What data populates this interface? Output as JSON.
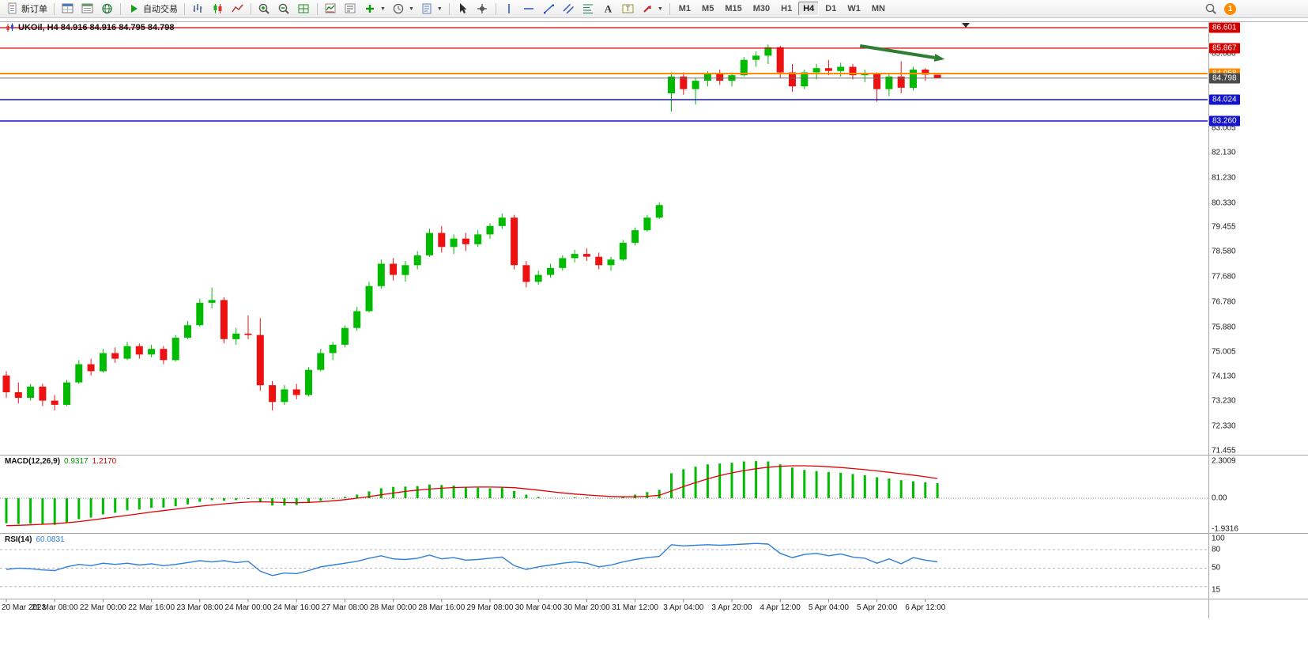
{
  "toolbar": {
    "new_order_label": "新订单",
    "autotrading_label": "自动交易",
    "timeframes": [
      "M1",
      "M5",
      "M15",
      "M30",
      "H1",
      "H4",
      "D1",
      "W1",
      "MN"
    ],
    "active_timeframe": "H4",
    "notification_count": "1",
    "groups": [
      {
        "items": [
          {
            "name": "new-order-button",
            "icon": "page",
            "label_key": "new_order_label"
          }
        ]
      },
      {
        "items": [
          {
            "name": "market-watch-icon",
            "icon": "win"
          },
          {
            "name": "data-window-icon",
            "icon": "datawin"
          },
          {
            "name": "navigator-icon",
            "icon": "globe"
          }
        ]
      },
      {
        "items": [
          {
            "name": "autotrading-button",
            "icon": "play",
            "label_key": "autotrading_label"
          }
        ]
      },
      {
        "items": [
          {
            "name": "bar-chart-icon",
            "icon": "bars"
          },
          {
            "name": "candlestick-chart-icon",
            "icon": "candles"
          },
          {
            "name": "line-chart-icon",
            "icon": "linec"
          }
        ]
      },
      {
        "items": [
          {
            "name": "zoom-in-icon",
            "icon": "zoomin"
          },
          {
            "name": "zoom-out-icon",
            "icon": "zoomout"
          },
          {
            "name": "tile-windows-icon",
            "icon": "grid"
          }
        ]
      },
      {
        "items": [
          {
            "name": "indicators-icon",
            "icon": "indchart"
          },
          {
            "name": "indicator-list-icon",
            "icon": "indlist"
          },
          {
            "name": "add-indicator-dropdown",
            "icon": "plus",
            "dropdown": true
          },
          {
            "name": "periods-dropdown",
            "icon": "clock",
            "dropdown": true
          },
          {
            "name": "templates-dropdown",
            "icon": "template",
            "dropdown": true
          }
        ]
      },
      {
        "items": [
          {
            "name": "cursor-icon",
            "icon": "cursor"
          },
          {
            "name": "crosshair-icon",
            "icon": "cross"
          }
        ]
      },
      {
        "items": [
          {
            "name": "vertical-line-icon",
            "icon": "vline"
          },
          {
            "name": "horizontal-line-icon",
            "icon": "hline"
          },
          {
            "name": "trendline-icon",
            "icon": "tline"
          },
          {
            "name": "equidistant-channel-icon",
            "icon": "channel"
          },
          {
            "name": "fibonacci-icon",
            "icon": "fibo"
          },
          {
            "name": "text-icon",
            "icon": "textA"
          },
          {
            "name": "text-label-icon",
            "icon": "textT"
          },
          {
            "name": "arrows-dropdown",
            "icon": "arrowsym",
            "dropdown": true
          }
        ]
      }
    ]
  },
  "chart": {
    "title": "UKOil, H4 84.916 84.916 84.795 84.798",
    "symbol": "UKOil",
    "period": "H4",
    "open": "84.916",
    "high": "84.916",
    "low": "84.795",
    "close": "84.798"
  },
  "indicators": {
    "macd": {
      "name": "MACD(12,26,9)",
      "value": "0.9317",
      "signal": "1.2170"
    },
    "rsi": {
      "name": "RSI(14)",
      "value": "60.0831"
    }
  },
  "chart_data": [
    {
      "type": "candlestick",
      "title": "UKOil H4",
      "ylim": [
        71.0,
        86.8
      ],
      "colors": {
        "up": "#00BB00",
        "down": "#EE1111"
      },
      "price_ticks": [
        85.68,
        83.005,
        82.13,
        81.23,
        80.33,
        79.455,
        78.58,
        77.68,
        76.78,
        75.88,
        75.005,
        74.13,
        73.23,
        72.33,
        71.455
      ],
      "level_lines": [
        {
          "price": 86.601,
          "label": "86.601",
          "line_color": "#D40000",
          "label_bg": "#D40000",
          "line_width": 1.2
        },
        {
          "price": 85.867,
          "label": "85.867",
          "line_color": "#D40000",
          "label_bg": "#D40000",
          "line_width": 1.2
        },
        {
          "price": 84.958,
          "label": "84.958",
          "line_color": "#FF8A00",
          "label_bg": "#FF8A00",
          "line_width": 2
        },
        {
          "price": 84.798,
          "label": "84.798",
          "line_color": "#6a6a6a",
          "label_bg": "#4a4a4a",
          "line_width": 1
        },
        {
          "price": 84.024,
          "label": "84.024",
          "line_color": "#1414CC",
          "label_bg": "#1414CC",
          "line_width": 1.4
        },
        {
          "price": 83.26,
          "label": "83.260",
          "line_color": "#1414CC",
          "label_bg": "#1414CC",
          "line_width": 1.4
        }
      ],
      "annotation_arrow": {
        "i1": 70.6,
        "p1": 85.95,
        "i2": 77.6,
        "p2": 85.47,
        "color": "#2E7D32"
      },
      "time_labels": [
        {
          "i": 0,
          "t": "20 Mar 2023"
        },
        {
          "i": 4,
          "t": "21 Mar 08:00"
        },
        {
          "i": 8,
          "t": "22 Mar 00:00"
        },
        {
          "i": 12,
          "t": "22 Mar 16:00"
        },
        {
          "i": 16,
          "t": "23 Mar 08:00"
        },
        {
          "i": 20,
          "t": "24 Mar 00:00"
        },
        {
          "i": 24,
          "t": "24 Mar 16:00"
        },
        {
          "i": 28,
          "t": "27 Mar 08:00"
        },
        {
          "i": 32,
          "t": "28 Mar 00:00"
        },
        {
          "i": 36,
          "t": "28 Mar 16:00"
        },
        {
          "i": 40,
          "t": "29 Mar 08:00"
        },
        {
          "i": 44,
          "t": "30 Mar 04:00"
        },
        {
          "i": 48,
          "t": "30 Mar 20:00"
        },
        {
          "i": 52,
          "t": "31 Mar 12:00"
        },
        {
          "i": 56,
          "t": "3 Apr 04:00"
        },
        {
          "i": 60,
          "t": "3 Apr 20:00"
        },
        {
          "i": 64,
          "t": "4 Apr 12:00"
        },
        {
          "i": 68,
          "t": "5 Apr 04:00"
        },
        {
          "i": 72,
          "t": "5 Apr 20:00"
        },
        {
          "i": 76,
          "t": "6 Apr 12:00"
        }
      ],
      "candles": [
        [
          74.15,
          74.3,
          73.35,
          73.55
        ],
        [
          73.55,
          73.9,
          73.15,
          73.35
        ],
        [
          73.35,
          73.85,
          73.25,
          73.75
        ],
        [
          73.75,
          73.85,
          73.05,
          73.25
        ],
        [
          73.25,
          73.45,
          72.9,
          73.1
        ],
        [
          73.1,
          74.0,
          73.05,
          73.9
        ],
        [
          73.9,
          74.7,
          73.85,
          74.55
        ],
        [
          74.55,
          74.75,
          74.15,
          74.3
        ],
        [
          74.3,
          75.1,
          74.25,
          74.95
        ],
        [
          74.95,
          75.15,
          74.6,
          74.75
        ],
        [
          74.75,
          75.35,
          74.7,
          75.2
        ],
        [
          75.2,
          75.3,
          74.75,
          74.9
        ],
        [
          74.9,
          75.25,
          74.8,
          75.1
        ],
        [
          75.1,
          75.2,
          74.55,
          74.7
        ],
        [
          74.7,
          75.6,
          74.65,
          75.5
        ],
        [
          75.5,
          76.1,
          75.45,
          75.95
        ],
        [
          75.95,
          76.9,
          75.9,
          76.75
        ],
        [
          76.75,
          77.3,
          76.55,
          76.85
        ],
        [
          76.85,
          76.95,
          75.3,
          75.45
        ],
        [
          75.45,
          75.85,
          75.25,
          75.65
        ],
        [
          75.65,
          76.3,
          75.45,
          75.6
        ],
        [
          75.6,
          76.2,
          73.6,
          73.8
        ],
        [
          73.8,
          73.95,
          72.9,
          73.2
        ],
        [
          73.2,
          73.8,
          73.1,
          73.65
        ],
        [
          73.65,
          73.85,
          73.3,
          73.45
        ],
        [
          73.45,
          74.45,
          73.4,
          74.35
        ],
        [
          74.35,
          75.1,
          74.3,
          74.95
        ],
        [
          74.95,
          75.35,
          74.7,
          75.25
        ],
        [
          75.25,
          75.95,
          75.15,
          75.85
        ],
        [
          75.85,
          76.6,
          75.75,
          76.45
        ],
        [
          76.45,
          77.5,
          76.4,
          77.35
        ],
        [
          77.35,
          78.3,
          77.25,
          78.15
        ],
        [
          78.15,
          78.35,
          77.55,
          77.75
        ],
        [
          77.75,
          78.25,
          77.5,
          78.1
        ],
        [
          78.1,
          78.6,
          77.95,
          78.45
        ],
        [
          78.45,
          79.4,
          78.4,
          79.25
        ],
        [
          79.25,
          79.5,
          78.55,
          78.75
        ],
        [
          78.75,
          79.2,
          78.5,
          79.05
        ],
        [
          79.05,
          79.25,
          78.6,
          78.85
        ],
        [
          78.85,
          79.35,
          78.75,
          79.2
        ],
        [
          79.2,
          79.6,
          79.05,
          79.5
        ],
        [
          79.5,
          79.95,
          79.4,
          79.8
        ],
        [
          79.8,
          79.9,
          77.95,
          78.1
        ],
        [
          78.1,
          78.25,
          77.3,
          77.5
        ],
        [
          77.5,
          77.9,
          77.4,
          77.75
        ],
        [
          77.75,
          78.15,
          77.65,
          78.0
        ],
        [
          78.0,
          78.45,
          77.9,
          78.35
        ],
        [
          78.35,
          78.65,
          78.2,
          78.5
        ],
        [
          78.5,
          78.7,
          78.25,
          78.4
        ],
        [
          78.4,
          78.55,
          77.95,
          78.1
        ],
        [
          78.1,
          78.4,
          77.9,
          78.3
        ],
        [
          78.3,
          79.0,
          78.25,
          78.9
        ],
        [
          78.9,
          79.45,
          78.8,
          79.35
        ],
        [
          79.35,
          79.9,
          79.3,
          79.8
        ],
        [
          79.8,
          80.35,
          79.75,
          80.25
        ],
        [
          84.25,
          85.0,
          83.6,
          84.85
        ],
        [
          84.85,
          85.0,
          84.2,
          84.4
        ],
        [
          84.4,
          84.8,
          83.85,
          84.7
        ],
        [
          84.7,
          85.05,
          84.5,
          84.95
        ],
        [
          84.95,
          85.1,
          84.55,
          84.7
        ],
        [
          84.7,
          85.0,
          84.5,
          84.9
        ],
        [
          84.9,
          85.55,
          84.85,
          85.45
        ],
        [
          85.45,
          85.75,
          85.2,
          85.6
        ],
        [
          85.6,
          86.0,
          85.3,
          85.9
        ],
        [
          85.9,
          85.95,
          84.8,
          85.0
        ],
        [
          85.0,
          85.3,
          84.3,
          84.5
        ],
        [
          84.5,
          85.1,
          84.4,
          85.0
        ],
        [
          85.0,
          85.3,
          84.75,
          85.15
        ],
        [
          85.15,
          85.45,
          84.9,
          85.05
        ],
        [
          85.05,
          85.35,
          84.85,
          85.2
        ],
        [
          85.2,
          85.3,
          84.75,
          84.9
        ],
        [
          84.9,
          85.1,
          84.65,
          84.95
        ],
        [
          84.95,
          85.0,
          83.95,
          84.4
        ],
        [
          84.4,
          84.95,
          84.15,
          84.85
        ],
        [
          84.85,
          85.4,
          84.25,
          84.45
        ],
        [
          84.45,
          85.2,
          84.35,
          85.1
        ],
        [
          85.1,
          85.15,
          84.7,
          84.92
        ],
        [
          84.916,
          84.916,
          84.795,
          84.798
        ]
      ]
    },
    {
      "type": "bar",
      "name": "MACD(12,26,9)",
      "current_value": 0.9317,
      "current_signal": 1.217,
      "ylim": [
        -2.1,
        2.45
      ],
      "axis_labels": [
        {
          "v": 2.3009,
          "t": "2.3009"
        },
        {
          "v": 0,
          "t": "0.00"
        },
        {
          "v": -1.9316,
          "t": "-1.9316"
        }
      ],
      "values": [
        -1.55,
        -1.6,
        -1.58,
        -1.62,
        -1.65,
        -1.5,
        -1.3,
        -1.2,
        -1.0,
        -0.9,
        -0.75,
        -0.7,
        -0.6,
        -0.58,
        -0.5,
        -0.38,
        -0.22,
        -0.12,
        -0.15,
        -0.12,
        -0.05,
        -0.25,
        -0.45,
        -0.45,
        -0.42,
        -0.3,
        -0.15,
        -0.05,
        0.08,
        0.22,
        0.42,
        0.62,
        0.7,
        0.72,
        0.75,
        0.85,
        0.82,
        0.78,
        0.7,
        0.65,
        0.62,
        0.65,
        0.45,
        0.22,
        0.08,
        0.02,
        0.02,
        0.05,
        0.05,
        -0.02,
        -0.02,
        0.08,
        0.22,
        0.38,
        0.52,
        1.55,
        1.8,
        1.95,
        2.1,
        2.15,
        2.2,
        2.28,
        2.3,
        2.28,
        2.1,
        1.9,
        1.75,
        1.68,
        1.62,
        1.58,
        1.5,
        1.42,
        1.3,
        1.22,
        1.12,
        1.05,
        0.98,
        0.93
      ],
      "signal": [
        -1.7,
        -1.68,
        -1.65,
        -1.62,
        -1.58,
        -1.52,
        -1.45,
        -1.36,
        -1.26,
        -1.16,
        -1.06,
        -0.96,
        -0.86,
        -0.77,
        -0.68,
        -0.59,
        -0.5,
        -0.42,
        -0.35,
        -0.29,
        -0.24,
        -0.22,
        -0.24,
        -0.27,
        -0.28,
        -0.26,
        -0.22,
        -0.16,
        -0.09,
        0.0,
        0.1,
        0.21,
        0.32,
        0.42,
        0.5,
        0.57,
        0.62,
        0.66,
        0.68,
        0.69,
        0.69,
        0.68,
        0.65,
        0.58,
        0.5,
        0.41,
        0.33,
        0.26,
        0.2,
        0.15,
        0.11,
        0.09,
        0.09,
        0.12,
        0.18,
        0.45,
        0.72,
        0.97,
        1.2,
        1.4,
        1.57,
        1.71,
        1.83,
        1.92,
        1.98,
        2.01,
        2.01,
        1.99,
        1.95,
        1.9,
        1.84,
        1.77,
        1.69,
        1.61,
        1.52,
        1.43,
        1.33,
        1.22
      ]
    },
    {
      "type": "line",
      "name": "RSI(14)",
      "current_value": 60.0831,
      "ylim": [
        15,
        100
      ],
      "levels": [
        80,
        50,
        20
      ],
      "axis_labels": [
        {
          "v": 100,
          "t": "100"
        },
        {
          "v": 80,
          "t": "80"
        },
        {
          "v": 50,
          "t": "50"
        },
        {
          "v": 15,
          "t": "15"
        }
      ],
      "values": [
        48,
        50,
        49,
        47,
        46,
        52,
        56,
        54,
        58,
        56,
        58,
        55,
        57,
        54,
        56,
        59,
        62,
        60,
        62,
        59,
        61,
        45,
        38,
        42,
        41,
        46,
        52,
        55,
        58,
        61,
        66,
        70,
        65,
        64,
        66,
        71,
        65,
        67,
        63,
        64,
        66,
        68,
        54,
        48,
        52,
        55,
        58,
        60,
        58,
        52,
        55,
        60,
        64,
        67,
        69,
        88,
        86,
        87,
        88,
        87,
        88,
        89,
        90,
        89,
        74,
        67,
        72,
        74,
        70,
        73,
        68,
        66,
        58,
        65,
        57,
        67,
        63,
        60.08
      ]
    }
  ]
}
